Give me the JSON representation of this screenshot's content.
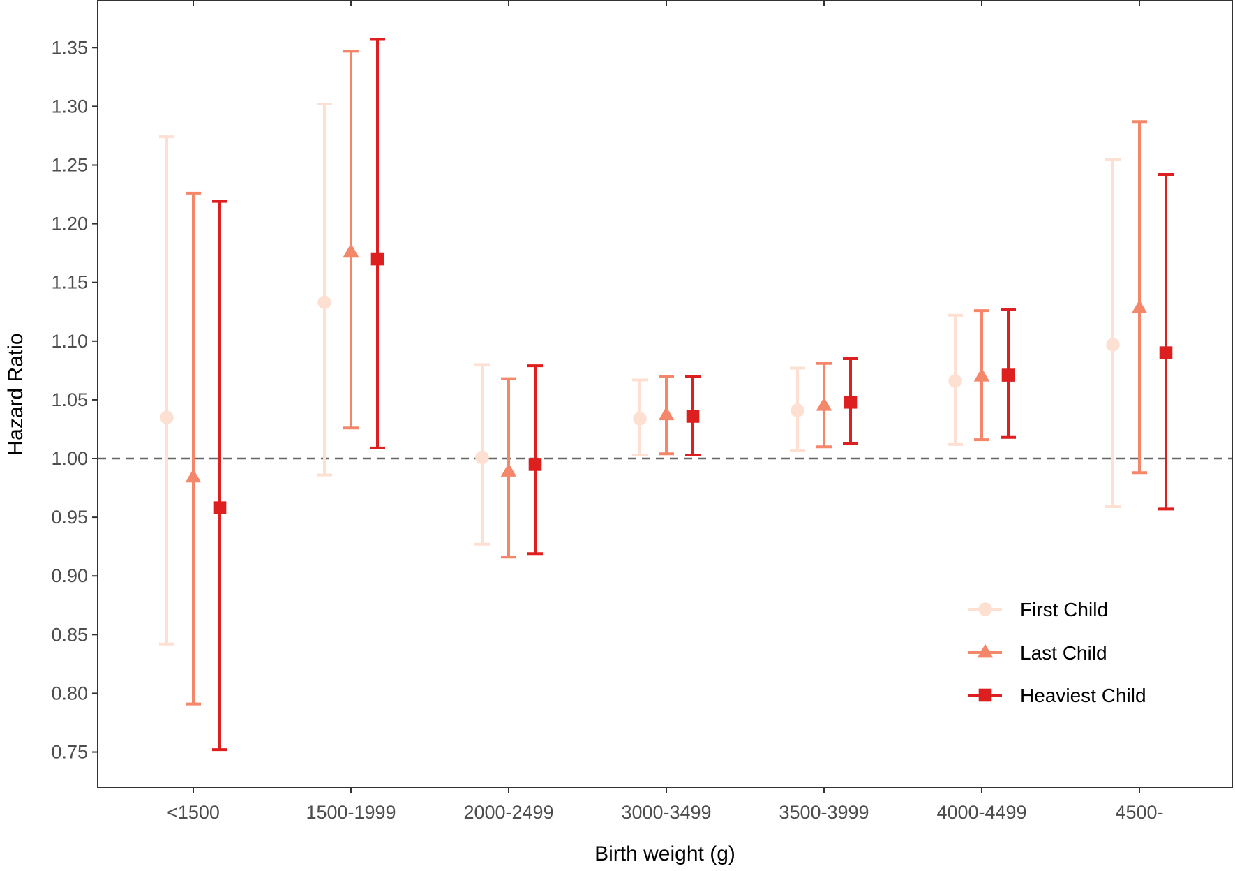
{
  "chart_data": {
    "type": "errorbar",
    "title": "",
    "xlabel": "Birth weight (g)",
    "ylabel": "Hazard Ratio",
    "categories": [
      "<1500",
      "1500-1999",
      "2000-2499",
      "3000-3499",
      "3500-3999",
      "4000-4499",
      "4500-"
    ],
    "ylim": [
      0.72,
      1.39
    ],
    "yticks": [
      "0.75",
      "0.80",
      "0.85",
      "0.90",
      "0.95",
      "1.00",
      "1.05",
      "1.10",
      "1.15",
      "1.20",
      "1.25",
      "1.30",
      "1.35"
    ],
    "reference_line": 1.0,
    "grid": false,
    "legend_position": "bottom-right",
    "series": [
      {
        "name": "First Child",
        "marker": "circle",
        "color": "#fde0d2",
        "values": [
          1.035,
          1.133,
          1.001,
          1.034,
          1.041,
          1.066,
          1.097
        ],
        "lower": [
          0.842,
          0.986,
          0.927,
          1.003,
          1.007,
          1.012,
          0.959
        ],
        "upper": [
          1.274,
          1.302,
          1.08,
          1.067,
          1.077,
          1.122,
          1.255
        ]
      },
      {
        "name": "Last Child",
        "marker": "triangle",
        "color": "#f4866a",
        "values": [
          0.984,
          1.176,
          0.989,
          1.037,
          1.045,
          1.07,
          1.128
        ],
        "lower": [
          0.791,
          1.026,
          0.916,
          1.004,
          1.01,
          1.016,
          0.988
        ],
        "upper": [
          1.226,
          1.347,
          1.068,
          1.07,
          1.081,
          1.126,
          1.287
        ]
      },
      {
        "name": "Heaviest Child",
        "marker": "square",
        "color": "#dd1f1f",
        "values": [
          0.958,
          1.17,
          0.995,
          1.036,
          1.048,
          1.071,
          1.09
        ],
        "lower": [
          0.752,
          1.009,
          0.919,
          1.003,
          1.013,
          1.018,
          0.957
        ],
        "upper": [
          1.219,
          1.357,
          1.079,
          1.07,
          1.085,
          1.127,
          1.242
        ]
      }
    ]
  }
}
